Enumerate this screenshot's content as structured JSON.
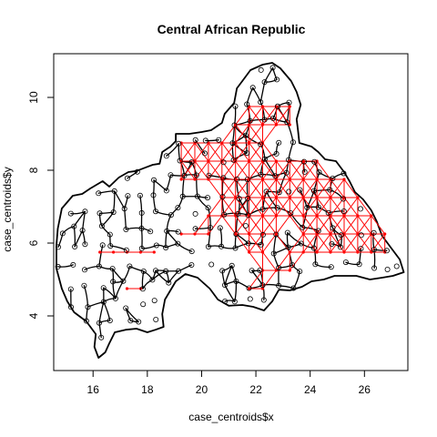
{
  "chart_data": {
    "type": "scatter",
    "title": "Central African Republic",
    "xlabel": "case_centroids$x",
    "ylabel": "case_centroids$y",
    "xlim": [
      14.55,
      27.6
    ],
    "ylim": [
      2.5,
      11.2
    ],
    "x_ticks": [
      16,
      18,
      20,
      22,
      24,
      26
    ],
    "y_ticks": [
      4,
      6,
      8,
      10
    ],
    "grid": false,
    "legend": "none",
    "colors": {
      "boundary": "#000000",
      "network": "#ff0000",
      "points": "#000000"
    },
    "network_region": {
      "lat_rows": [
        4.75,
        5.25,
        5.75,
        6.25,
        6.75,
        7.25,
        7.75,
        8.25,
        8.75,
        9.25,
        9.75
      ],
      "lon_ranges": [
        [
          [
            17.25,
            17.75
          ],
          [
            21.75,
            22.25
          ]
        ],
        [
          [
            22.25,
            23.25
          ]
        ],
        [
          [
            16.25,
            18.25
          ],
          [
            21.75,
            22.25
          ],
          [
            23.25,
            26.75
          ]
        ],
        [
          [
            19.25,
            20.25
          ],
          [
            21.25,
            22.75
          ],
          [
            23.75,
            26.75
          ]
        ],
        [
          [
            20.25,
            26.25
          ]
        ],
        [
          [
            20.75,
            25.75
          ]
        ],
        [
          [
            19.25,
            25.25
          ]
        ],
        [
          [
            19.25,
            20.25
          ],
          [
            20.75,
            23.25
          ],
          [
            23.75,
            24.25
          ]
        ],
        [
          [
            19.25,
            20.25
          ],
          [
            20.75,
            22.25
          ]
        ],
        [
          [
            21.25,
            22.25
          ],
          [
            22.75,
            23.25
          ]
        ],
        [
          [
            21.75,
            22.25
          ],
          [
            22.75,
            23.25
          ]
        ]
      ]
    },
    "boundary": [
      [
        14.65,
        5.95
      ],
      [
        14.7,
        6.4
      ],
      [
        14.85,
        6.95
      ],
      [
        15.25,
        7.3
      ],
      [
        15.6,
        7.35
      ],
      [
        15.9,
        7.5
      ],
      [
        16.35,
        7.7
      ],
      [
        16.6,
        7.55
      ],
      [
        16.95,
        7.8
      ],
      [
        17.3,
        7.95
      ],
      [
        17.6,
        7.98
      ],
      [
        17.95,
        8.08
      ],
      [
        18.2,
        8.15
      ],
      [
        18.45,
        8.18
      ],
      [
        18.55,
        8.5
      ],
      [
        18.85,
        8.65
      ],
      [
        19.05,
        8.8
      ],
      [
        19.05,
        9.0
      ],
      [
        19.55,
        9.0
      ],
      [
        20.0,
        9.05
      ],
      [
        20.35,
        9.1
      ],
      [
        20.75,
        9.3
      ],
      [
        20.85,
        9.55
      ],
      [
        21.2,
        9.85
      ],
      [
        21.3,
        10.25
      ],
      [
        21.55,
        10.5
      ],
      [
        21.8,
        10.75
      ],
      [
        22.25,
        10.9
      ],
      [
        22.6,
        10.95
      ],
      [
        22.9,
        10.8
      ],
      [
        23.3,
        10.45
      ],
      [
        23.5,
        10.15
      ],
      [
        23.65,
        9.8
      ],
      [
        23.5,
        9.4
      ],
      [
        23.55,
        9.1
      ],
      [
        23.6,
        8.75
      ],
      [
        24.05,
        8.65
      ],
      [
        24.3,
        8.5
      ],
      [
        24.55,
        8.3
      ],
      [
        24.95,
        8.25
      ],
      [
        25.25,
        7.95
      ],
      [
        25.45,
        7.7
      ],
      [
        25.65,
        7.4
      ],
      [
        25.95,
        7.2
      ],
      [
        26.25,
        6.9
      ],
      [
        26.45,
        6.6
      ],
      [
        26.65,
        6.2
      ],
      [
        27.0,
        5.85
      ],
      [
        27.3,
        5.55
      ],
      [
        27.45,
        5.2
      ],
      [
        27.05,
        5.1
      ],
      [
        26.65,
        5.05
      ],
      [
        26.2,
        5.0
      ],
      [
        25.7,
        5.1
      ],
      [
        25.3,
        5.1
      ],
      [
        24.9,
        5.1
      ],
      [
        24.5,
        5.0
      ],
      [
        24.05,
        4.95
      ],
      [
        23.7,
        4.8
      ],
      [
        23.25,
        4.7
      ],
      [
        22.85,
        4.72
      ],
      [
        22.6,
        4.4
      ],
      [
        22.3,
        4.15
      ],
      [
        21.9,
        4.25
      ],
      [
        21.5,
        4.3
      ],
      [
        21.0,
        4.28
      ],
      [
        20.6,
        4.45
      ],
      [
        20.3,
        4.75
      ],
      [
        19.85,
        5.05
      ],
      [
        19.4,
        5.15
      ],
      [
        19.05,
        4.95
      ],
      [
        18.65,
        4.45
      ],
      [
        18.55,
        4.05
      ],
      [
        18.6,
        3.7
      ],
      [
        18.3,
        3.62
      ],
      [
        18.0,
        3.55
      ],
      [
        17.6,
        3.65
      ],
      [
        17.2,
        3.62
      ],
      [
        16.8,
        3.55
      ],
      [
        16.6,
        3.25
      ],
      [
        16.45,
        3.0
      ],
      [
        16.2,
        2.85
      ],
      [
        16.05,
        3.15
      ],
      [
        16.1,
        3.5
      ],
      [
        15.75,
        3.85
      ],
      [
        15.3,
        4.1
      ],
      [
        15.05,
        4.4
      ],
      [
        14.85,
        4.75
      ],
      [
        14.65,
        5.3
      ],
      [
        14.65,
        5.95
      ]
    ]
  }
}
